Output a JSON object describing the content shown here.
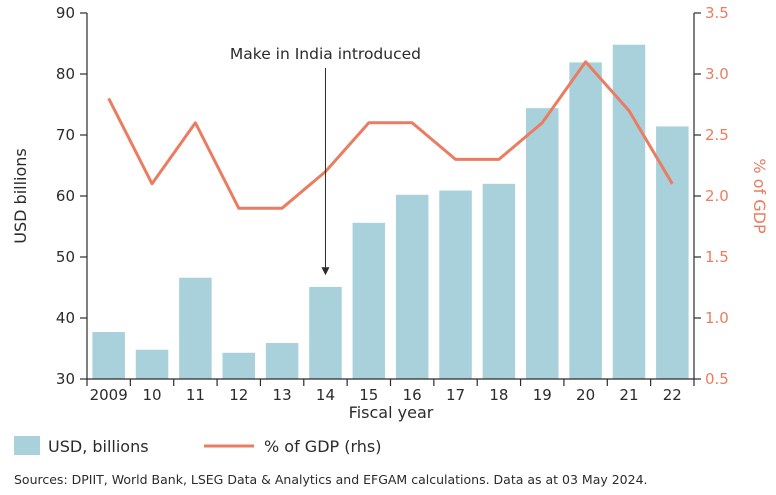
{
  "chart_data": {
    "type": "bar+line",
    "categories": [
      "2009",
      "10",
      "11",
      "12",
      "13",
      "14",
      "15",
      "16",
      "17",
      "18",
      "19",
      "20",
      "21",
      "22"
    ],
    "series": [
      {
        "name": "USD, billions",
        "type": "bar",
        "axis": "left",
        "color": "#a9d1dc",
        "values": [
          37.7,
          34.8,
          46.6,
          34.3,
          35.9,
          45.1,
          55.6,
          60.2,
          60.9,
          62.0,
          74.4,
          81.9,
          84.8,
          71.4
        ]
      },
      {
        "name": "% of GDP (rhs)",
        "type": "line",
        "axis": "right",
        "color": "#ea7d61",
        "values": [
          2.8,
          2.1,
          2.6,
          1.9,
          1.9,
          2.2,
          2.6,
          2.6,
          2.3,
          2.3,
          2.6,
          3.1,
          2.7,
          2.1
        ]
      }
    ],
    "xlabel": "Fiscal year",
    "ylabel": "USD billions",
    "ylabel_right": "% of GDP",
    "ylim": [
      30,
      90
    ],
    "yticks": [
      "30",
      "40",
      "50",
      "60",
      "70",
      "80",
      "90"
    ],
    "ylim_right": [
      0.5,
      3.5
    ],
    "yticks_right": [
      "0.5",
      "1.0",
      "1.5",
      "2.0",
      "2.5",
      "3.0",
      "3.5"
    ],
    "annotation": {
      "text": "Make in India introduced",
      "category": "14",
      "arrow_to_value": 47
    },
    "legend_position": "bottom-left",
    "grid": false
  },
  "legend": {
    "bar_label": "USD, billions",
    "line_label": "% of GDP (rhs)"
  },
  "footer": {
    "source": "Sources: DPIIT, World Bank, LSEG Data & Analytics and EFGAM calculations. Data as at 03 May 2024."
  }
}
